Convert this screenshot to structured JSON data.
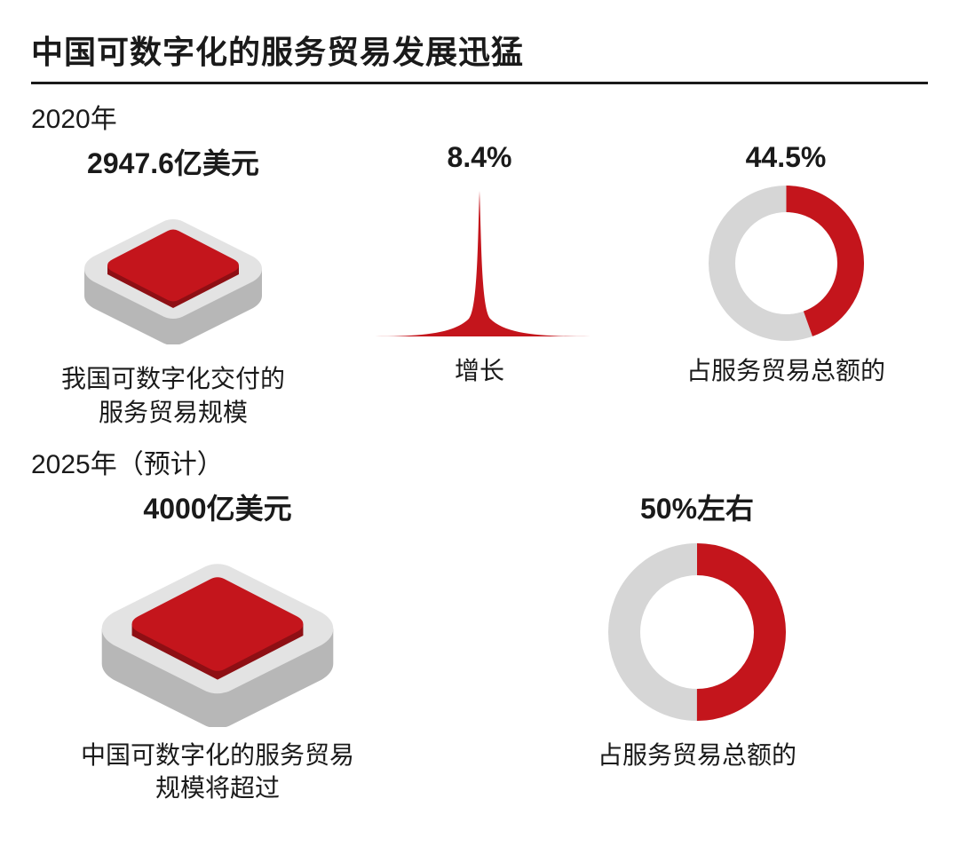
{
  "title": "中国可数字化的服务贸易发展迅猛",
  "colors": {
    "accent": "#c4151c",
    "ring_bg": "#d6d6d6",
    "platform_side": "#b7b7b7",
    "platform_top": "#e3e3e3",
    "text": "#1a1a1a",
    "bg": "#ffffff"
  },
  "typography": {
    "title_fontsize": 36,
    "year_fontsize": 30,
    "value_fontsize": 32,
    "caption_fontsize": 28,
    "font_family": "PingFang SC / Microsoft YaHei"
  },
  "sections": {
    "year_2020": {
      "label": "2020年",
      "items": {
        "scale": {
          "value_text": "2947.6亿美元",
          "caption": "我国可数字化交付的\n服务贸易规模",
          "icon": "isometric-tile",
          "tile_scale": 1.0
        },
        "growth": {
          "value_text": "8.4%",
          "caption": "增长",
          "icon": "spike-curve"
        },
        "share": {
          "value_text": "44.5%",
          "caption": "占服务贸易总额的",
          "icon": "donut",
          "donut": {
            "percent": 44.5,
            "ring_thickness": 30,
            "diameter": 175,
            "start_angle_deg": 0,
            "direction": "clockwise"
          }
        }
      }
    },
    "year_2025": {
      "label": "2025年（预计）",
      "items": {
        "scale": {
          "value_text": "4000亿美元",
          "caption": "中国可数字化的服务贸易\n规模将超过",
          "icon": "isometric-tile",
          "tile_scale": 1.25
        },
        "share": {
          "value_text": "50%左右",
          "caption": "占服务贸易总额的",
          "icon": "donut",
          "donut": {
            "percent": 50,
            "ring_thickness": 36,
            "diameter": 200,
            "start_angle_deg": 0,
            "direction": "clockwise"
          }
        }
      }
    }
  }
}
